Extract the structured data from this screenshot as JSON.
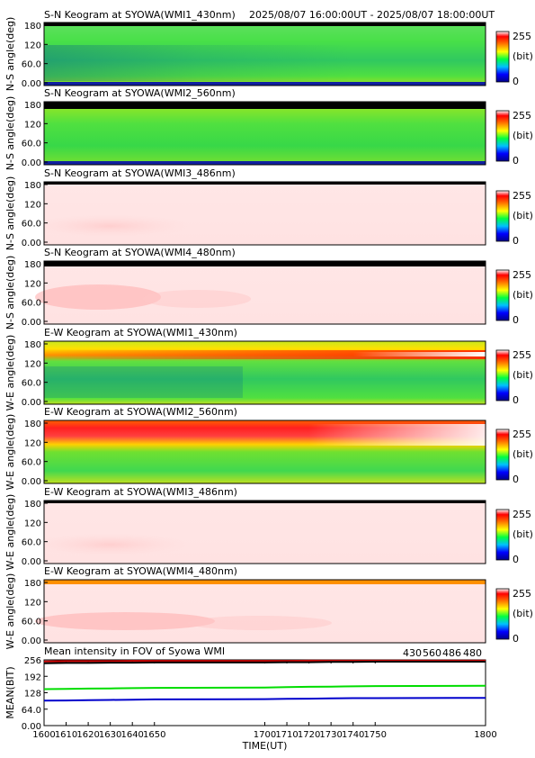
{
  "header": {
    "time_range": "2025/08/07 16:00:00UT - 2025/08/07 18:00:00UT"
  },
  "colorbar": {
    "max_label": "255",
    "unit_label": "(bit)",
    "min_label": "0"
  },
  "chart_data": [
    {
      "type": "heatmap",
      "title": "S-N Keogram at SYOWA(WMI1_430nm)",
      "ylabel": "N-S angle(deg)",
      "yticks": [
        "180",
        "120",
        "60.0",
        "0.00"
      ],
      "palette": "green"
    },
    {
      "type": "heatmap",
      "title": "S-N Keogram at SYOWA(WMI2_560nm)",
      "ylabel": "N-S angle(deg)",
      "yticks": [
        "180",
        "120",
        "60.0",
        "0.00"
      ],
      "palette": "green2"
    },
    {
      "type": "heatmap",
      "title": "S-N Keogram at SYOWA(WMI3_486nm)",
      "ylabel": "N-S angle(deg)",
      "yticks": [
        "180",
        "120",
        "60.0",
        "0.00"
      ],
      "palette": "pink"
    },
    {
      "type": "heatmap",
      "title": "S-N Keogram at SYOWA(WMI4_480nm)",
      "ylabel": "N-S angle(deg)",
      "yticks": [
        "180",
        "120",
        "60.0",
        "0.00"
      ],
      "palette": "pink2"
    },
    {
      "type": "heatmap",
      "title": "E-W Keogram at SYOWA(WMI1_430nm)",
      "ylabel": "W-E angle(deg)",
      "yticks": [
        "180",
        "120",
        "60.0",
        "0.00"
      ],
      "palette": "ew1"
    },
    {
      "type": "heatmap",
      "title": "E-W Keogram at SYOWA(WMI2_560nm)",
      "ylabel": "W-E angle(deg)",
      "yticks": [
        "180",
        "120",
        "60.0",
        "0.00"
      ],
      "palette": "ew2"
    },
    {
      "type": "heatmap",
      "title": "E-W Keogram at SYOWA(WMI3_486nm)",
      "ylabel": "W-E angle(deg)",
      "yticks": [
        "180",
        "120",
        "60.0",
        "0.00"
      ],
      "palette": "pink"
    },
    {
      "type": "heatmap",
      "title": "E-W Keogram at SYOWA(WMI4_480nm)",
      "ylabel": "W-E angle(deg)",
      "yticks": [
        "180",
        "120",
        "60.0",
        "0.00"
      ],
      "palette": "pink3"
    },
    {
      "type": "line",
      "title": "Mean intensity in FOV of Syowa WMI",
      "ylabel": "MEAN(BIT)",
      "xlabel": "TIME(UT)",
      "yticks": [
        "256",
        "192",
        "128",
        "64.0",
        "0.00"
      ],
      "ylim": [
        0,
        256
      ],
      "x": [
        1600,
        1610,
        1620,
        1630,
        1640,
        1650,
        1700,
        1710,
        1720,
        1730,
        1740,
        1750,
        1800
      ],
      "xticks": [
        "1600",
        "1610",
        "1620",
        "1630",
        "1640",
        "1650",
        "1700",
        "1710",
        "1720",
        "1730",
        "1740",
        "1750",
        "1800"
      ],
      "series": [
        {
          "name": "430",
          "color": "#0000cc",
          "values": [
            97,
            98,
            99,
            100,
            101,
            102,
            103,
            104,
            105,
            106,
            107,
            107,
            108
          ]
        },
        {
          "name": "560",
          "color": "#00dd00",
          "values": [
            142,
            143,
            144,
            145,
            146,
            147,
            148,
            150,
            151,
            152,
            153,
            154,
            155
          ]
        },
        {
          "name": "486",
          "color": "#cc0000",
          "values": [
            250,
            251,
            251,
            251,
            252,
            252,
            252,
            252,
            253,
            253,
            253,
            253,
            253
          ]
        },
        {
          "name": "480",
          "color": "#000000",
          "values": [
            243,
            244,
            244,
            245,
            245,
            246,
            246,
            247,
            247,
            248,
            248,
            249,
            249
          ]
        }
      ]
    }
  ]
}
